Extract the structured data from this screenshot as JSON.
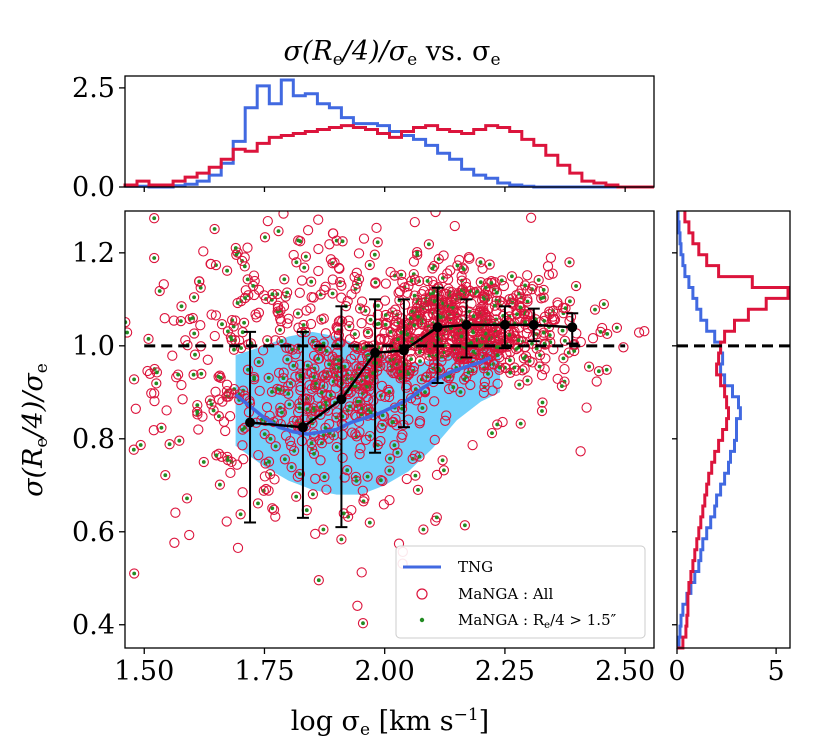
{
  "chart_data": {
    "type": "scatter",
    "title": "σ(R_e/4)/σ_e vs. σ_e",
    "title_parts": {
      "pre": "σ(R",
      "sub1": "e",
      "mid": "/4)/σ",
      "sub2": "e",
      "vs": " vs. σ",
      "sub3": "e"
    },
    "xlabel": "log σ_e [km s^-1]",
    "xlabel_parts": {
      "pre": "log σ",
      "sub": "e",
      "post": " [km s",
      "sup": "−1",
      "end": "]"
    },
    "ylabel": "σ(R_e/4)/σ_e",
    "ylabel_parts": {
      "pre": "σ(R",
      "sub1": "e",
      "mid": "/4)/σ",
      "sub2": "e"
    },
    "xlim": [
      1.46,
      2.56
    ],
    "ylim": [
      0.35,
      1.29
    ],
    "xticks": [
      "1.50",
      "1.75",
      "2.00",
      "2.25",
      "2.50"
    ],
    "xtick_values": [
      1.5,
      1.75,
      2.0,
      2.25,
      2.5
    ],
    "yticks": [
      "0.4",
      "0.6",
      "0.8",
      "1.0",
      "1.2"
    ],
    "ytick_values": [
      0.4,
      0.6,
      0.8,
      1.0,
      1.2
    ],
    "reference_line_y": 1.0,
    "colors": {
      "tng": "#4169e1",
      "manga": "#dc143c",
      "manga_sel": "#228b22",
      "band": "#5ac8fa",
      "median": "#000000"
    },
    "tng_median": {
      "name": "TNG",
      "x": [
        1.69,
        1.72,
        1.75,
        1.78,
        1.81,
        1.84,
        1.87,
        1.9,
        1.93,
        1.96,
        1.99,
        2.02,
        2.05,
        2.08,
        2.11,
        2.14,
        2.17,
        2.2,
        2.22
      ],
      "y": [
        0.895,
        0.87,
        0.845,
        0.825,
        0.815,
        0.81,
        0.815,
        0.82,
        0.835,
        0.845,
        0.855,
        0.87,
        0.885,
        0.91,
        0.93,
        0.945,
        0.955,
        0.965,
        0.975
      ],
      "band_x": [
        1.69,
        1.75,
        1.8,
        1.85,
        1.9,
        1.95,
        2.0,
        2.05,
        2.1,
        2.15,
        2.2,
        2.24
      ],
      "band_lo": [
        0.785,
        0.74,
        0.71,
        0.69,
        0.68,
        0.68,
        0.7,
        0.73,
        0.78,
        0.84,
        0.88,
        0.9
      ],
      "band_hi": [
        0.98,
        1.0,
        1.02,
        1.03,
        1.02,
        1.0,
        0.98,
        0.96,
        0.97,
        0.99,
        1.005,
        1.01
      ]
    },
    "manga_binned": {
      "x": [
        1.72,
        1.83,
        1.91,
        1.98,
        2.04,
        2.11,
        2.17,
        2.25,
        2.31,
        2.39
      ],
      "y": [
        0.835,
        0.825,
        0.885,
        0.985,
        0.99,
        1.04,
        1.045,
        1.045,
        1.045,
        1.04
      ],
      "err_lo": [
        0.215,
        0.195,
        0.275,
        0.215,
        0.165,
        0.12,
        0.07,
        0.05,
        0.035,
        0.035
      ],
      "err_hi": [
        0.195,
        0.205,
        0.2,
        0.115,
        0.11,
        0.085,
        0.055,
        0.04,
        0.035,
        0.03
      ]
    },
    "legend": [
      {
        "label": "TNG",
        "marker": "line"
      },
      {
        "label": "MaNGA : All",
        "marker": "open-circle"
      },
      {
        "label": "MaNGA : R_e/4 > 1.5″",
        "marker": "dot",
        "parts": {
          "pre": "MaNGA : R",
          "sub": "e",
          "post": "/4 > 1.5″"
        }
      }
    ],
    "top_hist": {
      "ylim": [
        0,
        2.8
      ],
      "yticks": [
        "0.0",
        "2.5"
      ],
      "ytick_values": [
        0.0,
        2.5
      ],
      "bin_start": 1.46,
      "bin_width": 0.025,
      "tng_values": [
        0.02,
        0.02,
        0.0,
        0.0,
        0.03,
        0.07,
        0.15,
        0.3,
        0.6,
        1.15,
        2.0,
        2.55,
        2.1,
        2.7,
        2.3,
        2.35,
        2.1,
        2.0,
        1.75,
        1.6,
        1.6,
        1.55,
        1.4,
        1.3,
        1.2,
        1.05,
        0.85,
        0.7,
        0.45,
        0.3,
        0.22,
        0.1,
        0.05,
        0.02,
        0.0,
        0.0,
        0.0,
        0.0,
        0.0,
        0.0,
        0.0,
        0.0,
        0.0,
        0.0
      ],
      "manga_values": [
        0.05,
        0.15,
        0.05,
        0.05,
        0.15,
        0.25,
        0.35,
        0.5,
        0.7,
        0.95,
        0.9,
        1.1,
        1.25,
        1.3,
        1.35,
        1.4,
        1.45,
        1.5,
        1.55,
        1.5,
        1.45,
        1.35,
        1.25,
        1.4,
        1.5,
        1.55,
        1.45,
        1.4,
        1.35,
        1.45,
        1.55,
        1.5,
        1.4,
        1.2,
        1.05,
        0.8,
        0.55,
        0.35,
        0.15,
        0.1,
        0.05,
        0.0,
        0.0,
        0.0
      ]
    },
    "right_hist": {
      "xlim": [
        0,
        5.7
      ],
      "xticks": [
        "0",
        "5"
      ],
      "xtick_values": [
        0,
        5
      ],
      "bin_start": 0.35,
      "bin_width": 0.0235,
      "tng_values": [
        0.1,
        0.15,
        0.2,
        0.3,
        0.5,
        0.7,
        0.9,
        1.1,
        1.2,
        1.3,
        1.5,
        1.7,
        1.9,
        2.0,
        2.2,
        2.4,
        2.6,
        2.7,
        2.9,
        3.0,
        3.0,
        3.2,
        3.1,
        2.8,
        2.4,
        2.2,
        2.3,
        2.2,
        1.9,
        1.5,
        1.2,
        1.0,
        0.8,
        0.6,
        0.4,
        0.3,
        0.2,
        0.15,
        0.1,
        0.05
      ],
      "manga_values": [
        0.3,
        0.45,
        0.5,
        0.55,
        0.55,
        0.6,
        0.7,
        0.8,
        0.9,
        1.0,
        1.1,
        1.2,
        1.3,
        1.4,
        1.5,
        1.6,
        1.75,
        1.9,
        2.1,
        2.3,
        2.5,
        2.6,
        2.5,
        2.4,
        2.2,
        2.0,
        2.1,
        2.2,
        2.4,
        2.9,
        3.6,
        4.5,
        5.6,
        3.8,
        2.1,
        1.5,
        1.1,
        0.8,
        0.6,
        0.4
      ]
    }
  }
}
